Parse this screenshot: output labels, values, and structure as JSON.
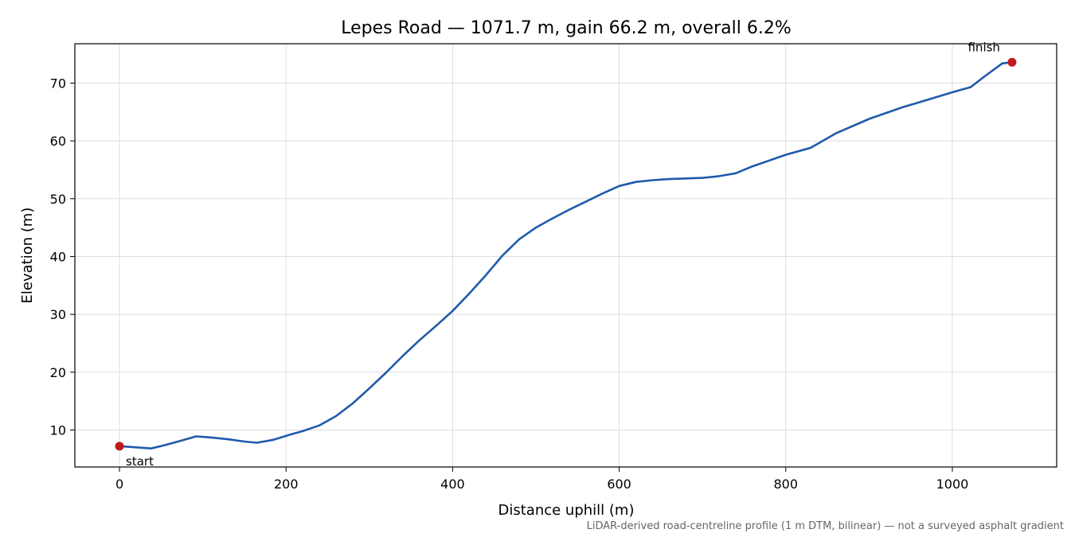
{
  "chart_data": {
    "type": "line",
    "title": "Lepes Road — 1071.7 m, gain 66.2 m, overall 6.2%",
    "xlabel": "Distance uphill (m)",
    "ylabel": "Elevation (m)",
    "xlim": [
      -53.6,
      1125.3
    ],
    "ylim": [
      3.6,
      76.8
    ],
    "x_ticks": [
      0,
      200,
      400,
      600,
      800,
      1000
    ],
    "y_ticks": [
      10,
      20,
      30,
      40,
      50,
      60,
      70
    ],
    "grid": true,
    "series": [
      {
        "color": "#1f5aab",
        "x": [
          0,
          20,
          38,
          55,
          75,
          92,
          110,
          130,
          150,
          165,
          185,
          205,
          220,
          240,
          260,
          280,
          300,
          320,
          340,
          360,
          380,
          400,
          420,
          440,
          460,
          480,
          500,
          520,
          540,
          560,
          580,
          600,
          620,
          640,
          660,
          680,
          700,
          720,
          740,
          760,
          780,
          800,
          830,
          860,
          900,
          940,
          970,
          1000,
          1022,
          1040,
          1060,
          1071.7
        ],
        "y": [
          7.2,
          7.0,
          6.8,
          7.4,
          8.2,
          8.9,
          8.7,
          8.4,
          8.0,
          7.8,
          8.3,
          9.2,
          9.8,
          10.8,
          12.4,
          14.6,
          17.2,
          19.9,
          22.8,
          25.5,
          28.0,
          30.6,
          33.6,
          36.8,
          40.2,
          43.0,
          45.0,
          46.6,
          48.1,
          49.5,
          50.9,
          52.2,
          52.9,
          53.2,
          53.4,
          53.5,
          53.6,
          53.9,
          54.4,
          55.6,
          56.6,
          57.6,
          58.8,
          61.3,
          63.8,
          65.8,
          67.1,
          68.4,
          69.3,
          71.3,
          73.4,
          73.6
        ]
      }
    ],
    "markers": [
      {
        "x": 0,
        "y": 7.2,
        "label": "start",
        "color": "#c0191e"
      },
      {
        "x": 1071.7,
        "y": 73.6,
        "label": "finish",
        "color": "#c0191e"
      }
    ],
    "caption": "LiDAR-derived road-centreline profile (1 m DTM, bilinear) — not a surveyed asphalt gradient"
  }
}
